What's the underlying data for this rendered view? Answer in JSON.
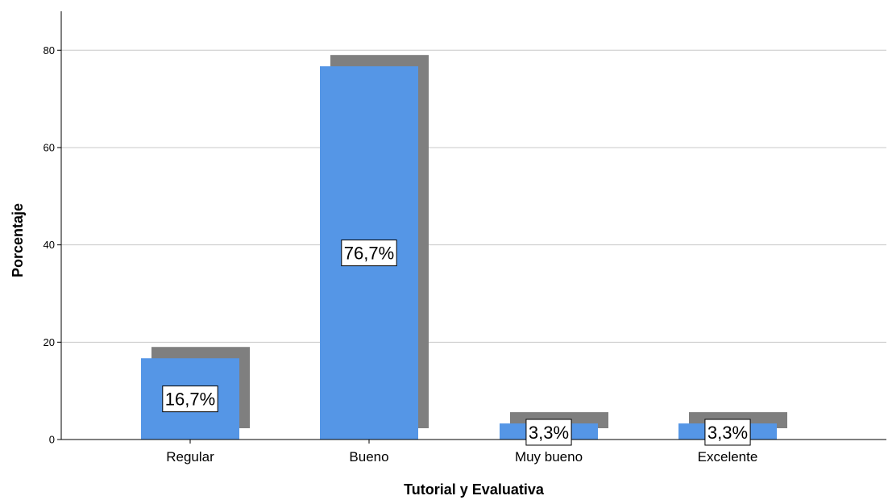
{
  "chart_data": {
    "type": "bar",
    "categories": [
      "Regular",
      "Bueno",
      "Muy bueno",
      "Excelente"
    ],
    "values": [
      16.7,
      76.7,
      3.3,
      3.3
    ],
    "data_labels": [
      "16,7%",
      "76,7%",
      "3,3%",
      "3,3%"
    ],
    "xlabel": "Tutorial y Evaluativa",
    "ylabel": "Porcentaje",
    "ylim": [
      0,
      88
    ],
    "yticks": [
      0,
      20,
      40,
      60,
      80
    ],
    "ytick_labels": [
      "0",
      "20",
      "40",
      "60",
      "80"
    ],
    "grid": true,
    "style": "3d-shadow"
  },
  "colors": {
    "bar": "#5596e6",
    "shadow": "#7f7f7f",
    "gridline": "#c8c8c8",
    "axis": "#000000",
    "label_box_border": "#000000",
    "label_box_fill": "#ffffff"
  }
}
